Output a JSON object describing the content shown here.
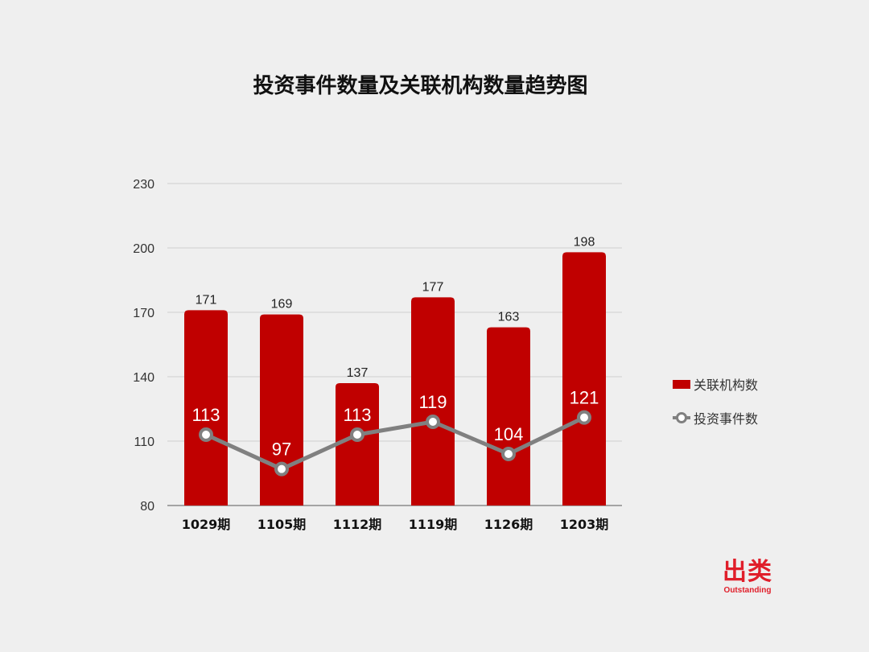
{
  "chart_data": {
    "type": "bar",
    "title": "投资事件数量及关联机构数量趋势图",
    "categories": [
      "1029期",
      "1105期",
      "1112期",
      "1119期",
      "1126期",
      "1203期"
    ],
    "series": [
      {
        "name": "关联机构数",
        "type": "bar",
        "values": [
          171,
          169,
          137,
          177,
          163,
          198
        ],
        "color": "#c00000"
      },
      {
        "name": "投资事件数",
        "type": "line",
        "values": [
          113,
          97,
          113,
          119,
          104,
          121
        ],
        "color": "#808080"
      }
    ],
    "ylim": [
      80,
      230
    ],
    "yticks": [
      80,
      110,
      140,
      170,
      200,
      230
    ],
    "grid": true,
    "legend": "right"
  },
  "brand": {
    "name": "出类",
    "tagline": "Outstanding"
  }
}
